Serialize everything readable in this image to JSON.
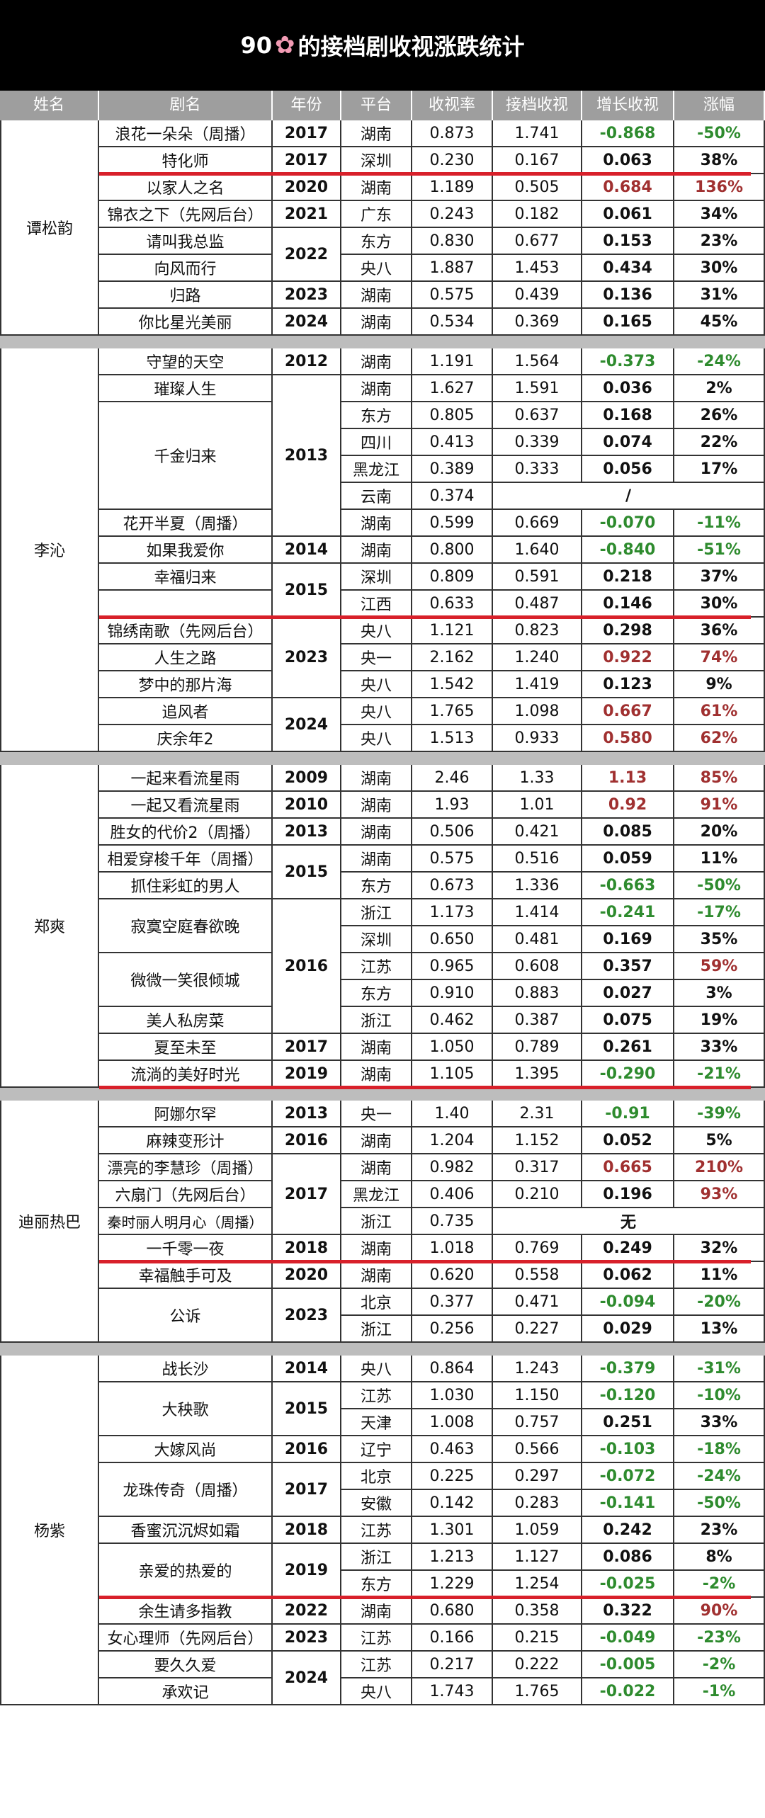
{
  "title": {
    "prefix": "90",
    "suffix": "的接档剧收视涨跌统计",
    "flower_icon": "cherry-blossom-icon",
    "flower_glyph": "✿"
  },
  "headers": [
    "姓名",
    "剧名",
    "年份",
    "平台",
    "收视率",
    "接档收视",
    "增长收视",
    "涨幅"
  ],
  "colors": {
    "green": "#2e8b2e",
    "red": "#a03030",
    "header": "#9e9e9e",
    "line": "#d8202a"
  },
  "groups": [
    {
      "name": "谭松韵",
      "rows": [
        [
          "浪花一朵朵（周播）",
          "2017",
          "湖南",
          "0.873",
          "1.741",
          "-0.868",
          "-50%",
          "g",
          "g"
        ],
        [
          "特化师",
          "2017",
          "深圳",
          "0.230",
          "0.167",
          "0.063",
          "38%",
          "",
          ""
        ],
        [
          "以家人之名",
          "2020",
          "湖南",
          "1.189",
          "0.505",
          "0.684",
          "136%",
          "r",
          "r"
        ],
        [
          "锦衣之下（先网后台）",
          "2021",
          "广东",
          "0.243",
          "0.182",
          "0.061",
          "34%",
          "",
          ""
        ],
        [
          "请叫我总监",
          "2022",
          "东方",
          "0.830",
          "0.677",
          "0.153",
          "23%",
          "",
          ""
        ],
        [
          "向风而行",
          "",
          "央八",
          "1.887",
          "1.453",
          "0.434",
          "30%",
          "",
          ""
        ],
        [
          "归路",
          "2023",
          "湖南",
          "0.575",
          "0.439",
          "0.136",
          "31%",
          "",
          ""
        ],
        [
          "你比星光美丽",
          "2024",
          "湖南",
          "0.534",
          "0.369",
          "0.165",
          "45%",
          "",
          ""
        ]
      ]
    },
    {
      "name": "李沁",
      "rows": [
        [
          "守望的天空",
          "2012",
          "湖南",
          "1.191",
          "1.564",
          "-0.373",
          "-24%",
          "g",
          "g"
        ],
        [
          "璀璨人生",
          "2013",
          "湖南",
          "1.627",
          "1.591",
          "0.036",
          "2%",
          "",
          ""
        ],
        [
          "千金归来",
          "",
          "东方",
          "0.805",
          "0.637",
          "0.168",
          "26%",
          "",
          ""
        ],
        [
          "",
          "",
          "四川",
          "0.413",
          "0.339",
          "0.074",
          "22%",
          "",
          ""
        ],
        [
          "",
          "",
          "黑龙江",
          "0.389",
          "0.333",
          "0.056",
          "17%",
          "",
          ""
        ],
        [
          "",
          "",
          "云南",
          "0.374",
          "/",
          "",
          "",
          "",
          ""
        ],
        [
          "花开半夏（周播）",
          "",
          "湖南",
          "0.599",
          "0.669",
          "-0.070",
          "-11%",
          "g",
          "g"
        ],
        [
          "如果我爱你",
          "2014",
          "湖南",
          "0.800",
          "1.640",
          "-0.840",
          "-51%",
          "g",
          "g"
        ],
        [
          "幸福归来",
          "2015",
          "深圳",
          "0.809",
          "0.591",
          "0.218",
          "37%",
          "",
          ""
        ],
        [
          "",
          "",
          "江西",
          "0.633",
          "0.487",
          "0.146",
          "30%",
          "",
          ""
        ],
        [
          "锦绣南歌（先网后台）",
          "2023",
          "央八",
          "1.121",
          "0.823",
          "0.298",
          "36%",
          "",
          ""
        ],
        [
          "人生之路",
          "",
          "央一",
          "2.162",
          "1.240",
          "0.922",
          "74%",
          "r",
          "r"
        ],
        [
          "梦中的那片海",
          "",
          "央八",
          "1.542",
          "1.419",
          "0.123",
          "9%",
          "",
          ""
        ],
        [
          "追风者",
          "2024",
          "央八",
          "1.765",
          "1.098",
          "0.667",
          "61%",
          "r",
          "r"
        ],
        [
          "庆余年2",
          "",
          "央八",
          "1.513",
          "0.933",
          "0.580",
          "62%",
          "r",
          "r"
        ]
      ]
    },
    {
      "name": "郑爽",
      "rows": [
        [
          "一起来看流星雨",
          "2009",
          "湖南",
          "2.46",
          "1.33",
          "1.13",
          "85%",
          "r",
          "r"
        ],
        [
          "一起又看流星雨",
          "2010",
          "湖南",
          "1.93",
          "1.01",
          "0.92",
          "91%",
          "r",
          "r"
        ],
        [
          "胜女的代价2（周播）",
          "2013",
          "湖南",
          "0.506",
          "0.421",
          "0.085",
          "20%",
          "",
          ""
        ],
        [
          "相爱穿梭千年（周播）",
          "2015",
          "湖南",
          "0.575",
          "0.516",
          "0.059",
          "11%",
          "",
          ""
        ],
        [
          "抓住彩虹的男人",
          "",
          "东方",
          "0.673",
          "1.336",
          "-0.663",
          "-50%",
          "g",
          "g"
        ],
        [
          "寂寞空庭春欲晚",
          "2016",
          "浙江",
          "1.173",
          "1.414",
          "-0.241",
          "-17%",
          "g",
          "g"
        ],
        [
          "",
          "",
          "深圳",
          "0.650",
          "0.481",
          "0.169",
          "35%",
          "",
          ""
        ],
        [
          "微微一笑很倾城",
          "",
          "江苏",
          "0.965",
          "0.608",
          "0.357",
          "59%",
          "",
          "r"
        ],
        [
          "",
          "",
          "东方",
          "0.910",
          "0.883",
          "0.027",
          "3%",
          "",
          ""
        ],
        [
          "美人私房菜",
          "",
          "浙江",
          "0.462",
          "0.387",
          "0.075",
          "19%",
          "",
          ""
        ],
        [
          "夏至未至",
          "2017",
          "湖南",
          "1.050",
          "0.789",
          "0.261",
          "33%",
          "",
          ""
        ],
        [
          "流淌的美好时光",
          "2019",
          "湖南",
          "1.105",
          "1.395",
          "-0.290",
          "-21%",
          "g",
          "g"
        ]
      ]
    },
    {
      "name": "迪丽热巴",
      "rows": [
        [
          "阿娜尔罕",
          "2013",
          "央一",
          "1.40",
          "2.31",
          "-0.91",
          "-39%",
          "g",
          "g"
        ],
        [
          "麻辣变形计",
          "2016",
          "湖南",
          "1.204",
          "1.152",
          "0.052",
          "5%",
          "",
          ""
        ],
        [
          "漂亮的李慧珍（周播）",
          "2017",
          "湖南",
          "0.982",
          "0.317",
          "0.665",
          "210%",
          "r",
          "r"
        ],
        [
          "六扇门（先网后台）",
          "",
          "黑龙江",
          "0.406",
          "0.210",
          "0.196",
          "93%",
          "",
          "r"
        ],
        [
          "秦时丽人明月心（周播）",
          "",
          "浙江",
          "0.735",
          "无",
          "",
          "",
          "",
          ""
        ],
        [
          "一千零一夜",
          "2018",
          "湖南",
          "1.018",
          "0.769",
          "0.249",
          "32%",
          "",
          ""
        ],
        [
          "幸福触手可及",
          "2020",
          "湖南",
          "0.620",
          "0.558",
          "0.062",
          "11%",
          "",
          ""
        ],
        [
          "公诉",
          "2023",
          "北京",
          "0.377",
          "0.471",
          "-0.094",
          "-20%",
          "g",
          "g"
        ],
        [
          "",
          "",
          "浙江",
          "0.256",
          "0.227",
          "0.029",
          "13%",
          "",
          ""
        ]
      ]
    },
    {
      "name": "杨紫",
      "rows": [
        [
          "战长沙",
          "2014",
          "央八",
          "0.864",
          "1.243",
          "-0.379",
          "-31%",
          "g",
          "g"
        ],
        [
          "大秧歌",
          "2015",
          "江苏",
          "1.030",
          "1.150",
          "-0.120",
          "-10%",
          "g",
          "g"
        ],
        [
          "",
          "",
          "天津",
          "1.008",
          "0.757",
          "0.251",
          "33%",
          "",
          ""
        ],
        [
          "大嫁风尚",
          "2016",
          "辽宁",
          "0.463",
          "0.566",
          "-0.103",
          "-18%",
          "g",
          "g"
        ],
        [
          "龙珠传奇（周播）",
          "2017",
          "北京",
          "0.225",
          "0.297",
          "-0.072",
          "-24%",
          "g",
          "g"
        ],
        [
          "",
          "",
          "安徽",
          "0.142",
          "0.283",
          "-0.141",
          "-50%",
          "g",
          "g"
        ],
        [
          "香蜜沉沉烬如霜",
          "2018",
          "江苏",
          "1.301",
          "1.059",
          "0.242",
          "23%",
          "",
          ""
        ],
        [
          "亲爱的热爱的",
          "2019",
          "浙江",
          "1.213",
          "1.127",
          "0.086",
          "8%",
          "",
          ""
        ],
        [
          "",
          "",
          "东方",
          "1.229",
          "1.254",
          "-0.025",
          "-2%",
          "g",
          "g"
        ],
        [
          "余生请多指教",
          "2022",
          "湖南",
          "0.680",
          "0.358",
          "0.322",
          "90%",
          "",
          "r"
        ],
        [
          "女心理师（先网后台）",
          "2023",
          "江苏",
          "0.166",
          "0.215",
          "-0.049",
          "-23%",
          "g",
          "g"
        ],
        [
          "要久久爱",
          "2024",
          "江苏",
          "0.217",
          "0.222",
          "-0.005",
          "-2%",
          "g",
          "g"
        ],
        [
          "承欢记",
          "",
          "央八",
          "1.743",
          "1.765",
          "-0.022",
          "-1%",
          "g",
          "g"
        ]
      ]
    }
  ]
}
